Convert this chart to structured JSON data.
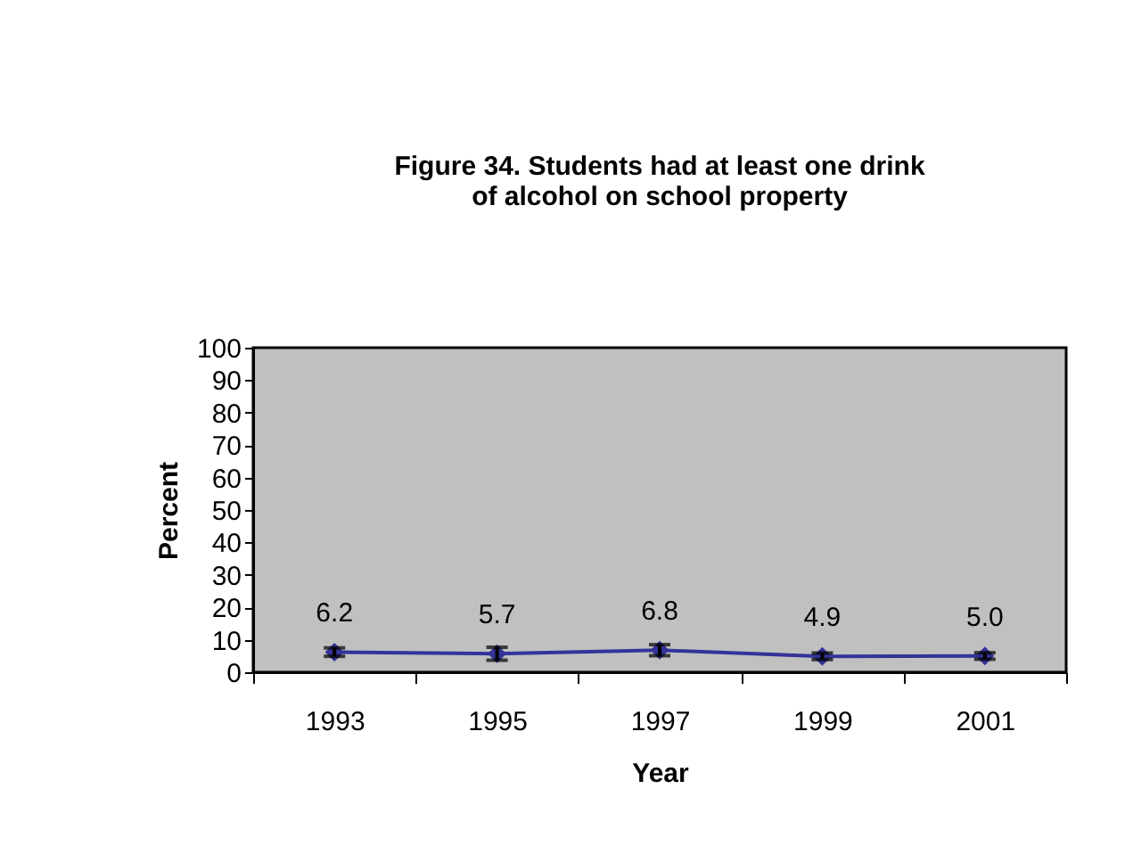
{
  "chart_data": {
    "type": "line",
    "title": "Figure 34. Students had at least one drink of alcohol on school property",
    "xlabel": "Year",
    "ylabel": "Percent",
    "categories": [
      "1993",
      "1995",
      "1997",
      "1999",
      "2001"
    ],
    "series": [
      {
        "color": "#333399",
        "values": [
          6.2,
          5.7,
          6.8,
          4.9,
          5.0
        ],
        "errors": [
          1.3,
          2.0,
          1.7,
          1.0,
          1.0
        ],
        "value_labels": [
          "6.2",
          "5.7",
          "6.8",
          "4.9",
          "5.0"
        ]
      }
    ],
    "ylim": [
      0,
      100
    ],
    "yticks": [
      0,
      10,
      20,
      30,
      40,
      50,
      60,
      70,
      80,
      90,
      100
    ],
    "grid": false,
    "marker": "diamond"
  }
}
